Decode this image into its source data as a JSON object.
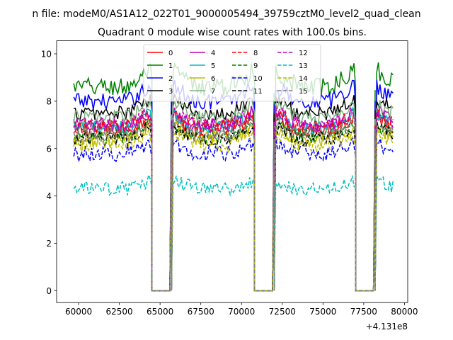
{
  "chart_data": {
    "type": "line",
    "suptitle": "n file: modeM0/AS1A12_022T01_9000005494_39759cztM0_level2_quad_clean",
    "title": "Quadrant 0 module wise count rates with 100.0s bins.",
    "xlabel": "",
    "ylabel": "",
    "x_offset_label": "+4.131e8",
    "xlim": [
      58650,
      80200
    ],
    "ylim": [
      -0.5,
      10.55
    ],
    "xticks": [
      60000,
      62500,
      65000,
      67500,
      70000,
      72500,
      75000,
      77500,
      80000
    ],
    "xtick_labels": [
      "60000",
      "62500",
      "65000",
      "67500",
      "70000",
      "72500",
      "75000",
      "77500",
      "80000"
    ],
    "yticks": [
      0,
      2,
      4,
      6,
      8,
      10
    ],
    "ytick_labels": [
      "0",
      "2",
      "4",
      "6",
      "8",
      "10"
    ],
    "data_x_start": 59700,
    "data_x_end": 79300,
    "data_x_step": 100,
    "gaps": [
      [
        64500,
        65700
      ],
      [
        70800,
        72000
      ],
      [
        77000,
        78200
      ]
    ],
    "legend_position": "upper center",
    "series": [
      {
        "name": "0",
        "color": "#ff0000",
        "dashed": false,
        "level": 6.8,
        "amp": 0.35
      },
      {
        "name": "1",
        "color": "#008000",
        "dashed": false,
        "level": 8.6,
        "amp": 0.4
      },
      {
        "name": "2",
        "color": "#0000ff",
        "dashed": false,
        "level": 8.0,
        "amp": 0.35
      },
      {
        "name": "3",
        "color": "#000000",
        "dashed": false,
        "level": 7.5,
        "amp": 0.3
      },
      {
        "name": "4",
        "color": "#bf00bf",
        "dashed": false,
        "level": 7.0,
        "amp": 0.3
      },
      {
        "name": "5",
        "color": "#00bfbf",
        "dashed": false,
        "level": 6.9,
        "amp": 0.3
      },
      {
        "name": "6",
        "color": "#bfbf00",
        "dashed": false,
        "level": 6.4,
        "amp": 0.35
      },
      {
        "name": "7",
        "color": "#7fb27f",
        "dashed": false,
        "level": 7.3,
        "amp": 0.3
      },
      {
        "name": "8",
        "color": "#ff0000",
        "dashed": true,
        "level": 6.9,
        "amp": 0.35
      },
      {
        "name": "9",
        "color": "#008000",
        "dashed": true,
        "level": 6.5,
        "amp": 0.3
      },
      {
        "name": "10",
        "color": "#0000ff",
        "dashed": true,
        "level": 5.8,
        "amp": 0.35
      },
      {
        "name": "11",
        "color": "#000000",
        "dashed": true,
        "level": 6.4,
        "amp": 0.3
      },
      {
        "name": "12",
        "color": "#bf00bf",
        "dashed": true,
        "level": 7.0,
        "amp": 0.3
      },
      {
        "name": "13",
        "color": "#00bfbf",
        "dashed": true,
        "level": 4.3,
        "amp": 0.3
      },
      {
        "name": "14",
        "color": "#bfbf00",
        "dashed": true,
        "level": 6.2,
        "amp": 0.35
      },
      {
        "name": "15",
        "color": "#7f7f7f",
        "dashed": true,
        "level": 6.6,
        "amp": 0.3
      }
    ]
  }
}
